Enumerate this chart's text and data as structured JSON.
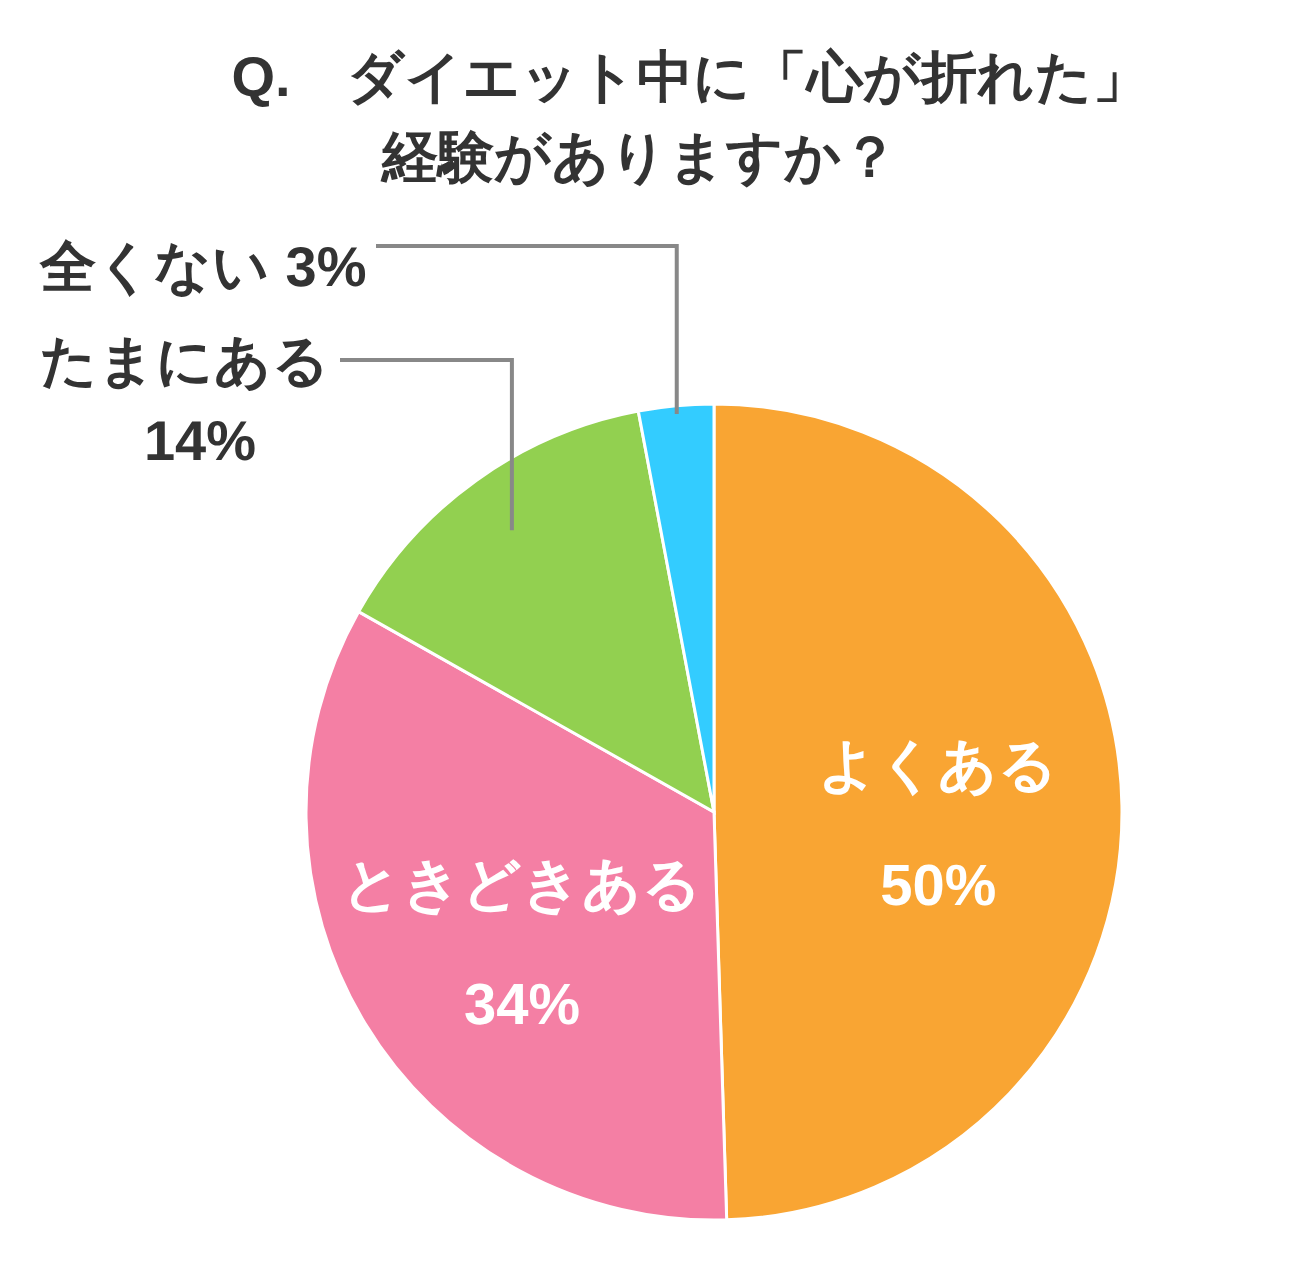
{
  "chart_data": {
    "type": "pie",
    "title": "Q.　ダイエット中に「心が折れた」経験がありますか？",
    "categories": [
      "よくある",
      "ときどきある",
      "たまにある",
      "全くない"
    ],
    "values": [
      50,
      34,
      14,
      3
    ],
    "value_labels": [
      "50%",
      "34%",
      "14%",
      "3%"
    ],
    "colors": [
      "#f9a533",
      "#f47fa4",
      "#92d050",
      "#33ccff"
    ]
  }
}
